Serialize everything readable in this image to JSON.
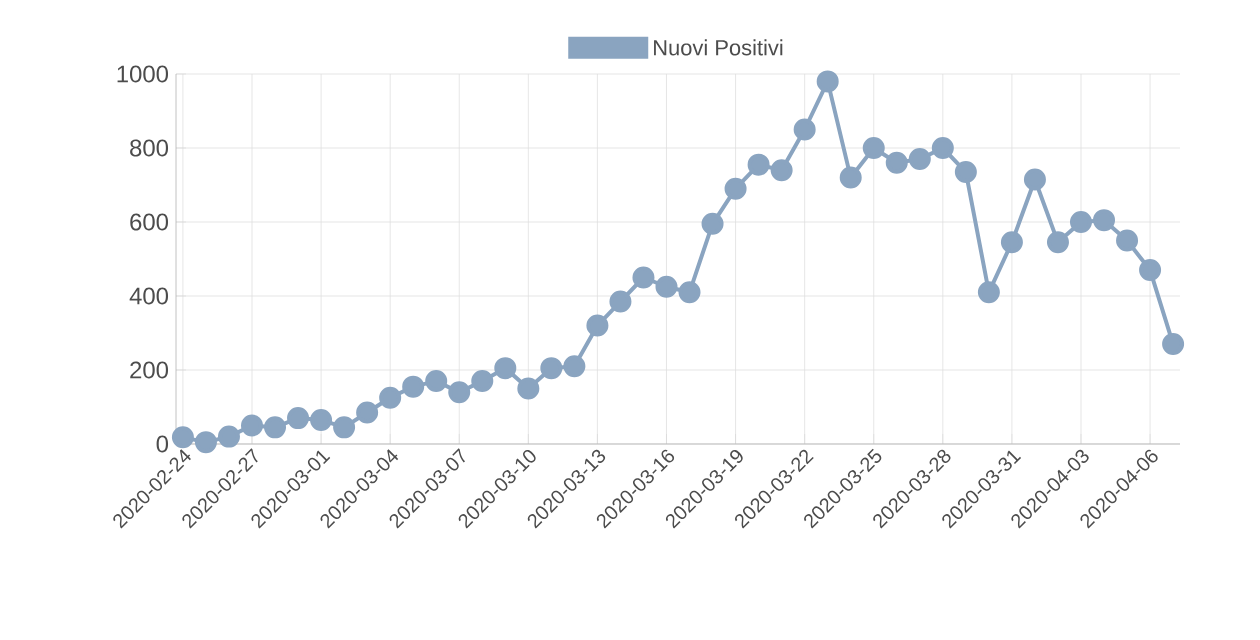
{
  "chart_data": {
    "type": "line",
    "categories": [
      "2020-02-24",
      null,
      null,
      "2020-02-27",
      null,
      null,
      "2020-03-01",
      null,
      null,
      "2020-03-04",
      null,
      null,
      "2020-03-07",
      null,
      null,
      "2020-03-10",
      null,
      null,
      "2020-03-13",
      null,
      null,
      "2020-03-16",
      null,
      null,
      "2020-03-19",
      null,
      null,
      "2020-03-22",
      null,
      null,
      "2020-03-25",
      null,
      null,
      "2020-03-28",
      null,
      null,
      "2020-03-31",
      null,
      null,
      "2020-04-03",
      null,
      null,
      "2020-04-06",
      null
    ],
    "series": [
      {
        "name": "Nuovi Positivi",
        "color": "#8aa4c0",
        "values": [
          18,
          5,
          20,
          50,
          45,
          70,
          65,
          45,
          85,
          125,
          155,
          170,
          140,
          170,
          205,
          150,
          205,
          210,
          320,
          385,
          450,
          425,
          410,
          595,
          690,
          755,
          740,
          850,
          980,
          720,
          800,
          760,
          770,
          800,
          735,
          410,
          545,
          715,
          545,
          600,
          605,
          550,
          470,
          270
        ]
      }
    ],
    "ylim": [
      0,
      1000
    ],
    "yticks": [
      0,
      200,
      400,
      600,
      800,
      1000
    ],
    "grid": true,
    "legend": "top",
    "marker": "circle",
    "line_style": "solid"
  }
}
